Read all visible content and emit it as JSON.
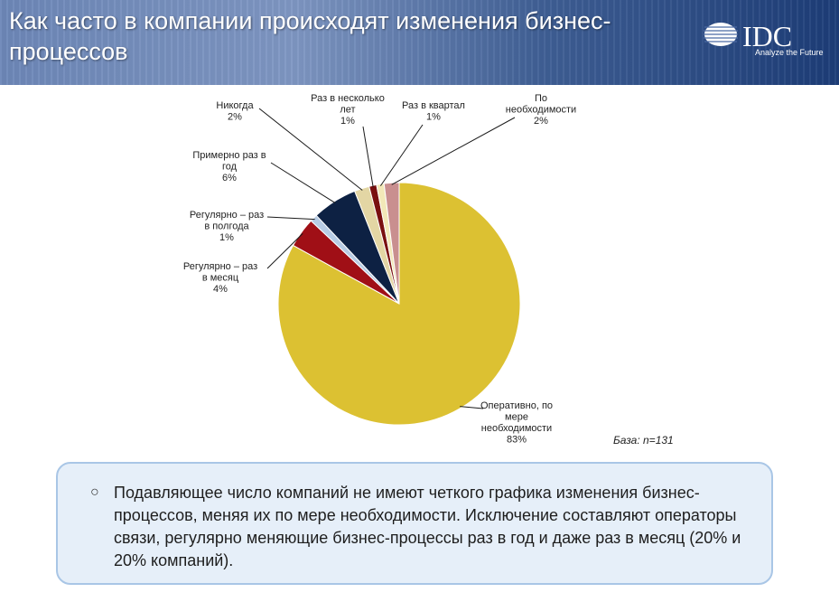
{
  "header": {
    "title": "Как часто в компании происходят изменения бизнес-процессов",
    "logo_text": "IDC",
    "logo_tagline": "Analyze the Future"
  },
  "chart_data": {
    "type": "pie",
    "title": "",
    "slices": [
      {
        "label": "Оперативно, по мере необходимости",
        "label_lines": [
          "Оперативно, по",
          "мере",
          "необходимости"
        ],
        "value": 83,
        "value_label": "83%",
        "color": "#dcc132"
      },
      {
        "label": "Регулярно – раз в месяц",
        "label_lines": [
          "Регулярно – раз",
          "в месяц"
        ],
        "value": 4,
        "value_label": "4%",
        "color": "#a00f16"
      },
      {
        "label": "Регулярно – раз в полгода",
        "label_lines": [
          "Регулярно – раз",
          "в полгода"
        ],
        "value": 1,
        "value_label": "1%",
        "color": "#b8cce4"
      },
      {
        "label": "Примерно раз в год",
        "label_lines": [
          "Примерно раз в",
          "год"
        ],
        "value": 6,
        "value_label": "6%",
        "color": "#0d2143"
      },
      {
        "label": "Никогда",
        "label_lines": [
          "Никогда"
        ],
        "value": 2,
        "value_label": "2%",
        "color": "#e3d6a4"
      },
      {
        "label": "Раз в несколько лет",
        "label_lines": [
          "Раз в несколько",
          "лет"
        ],
        "value": 1,
        "value_label": "1%",
        "color": "#7a1010"
      },
      {
        "label": "Раз в квартал",
        "label_lines": [
          "Раз в квартал"
        ],
        "value": 1,
        "value_label": "1%",
        "color": "#f2e8b8"
      },
      {
        "label": "По необходимости",
        "label_lines": [
          "По",
          "необходимости"
        ],
        "value": 2,
        "value_label": "2%",
        "color": "#c98f8f"
      }
    ]
  },
  "base_note": "База: n=131",
  "note": {
    "bullet": "○",
    "text": "Подавляющее число компаний не имеют четкого графика изменения бизнес-процессов, меняя их по мере необходимости. Исключение составляют операторы связи, регулярно меняющие бизнес-процессы раз в год и даже раз в месяц (20% и 20% компаний)."
  }
}
